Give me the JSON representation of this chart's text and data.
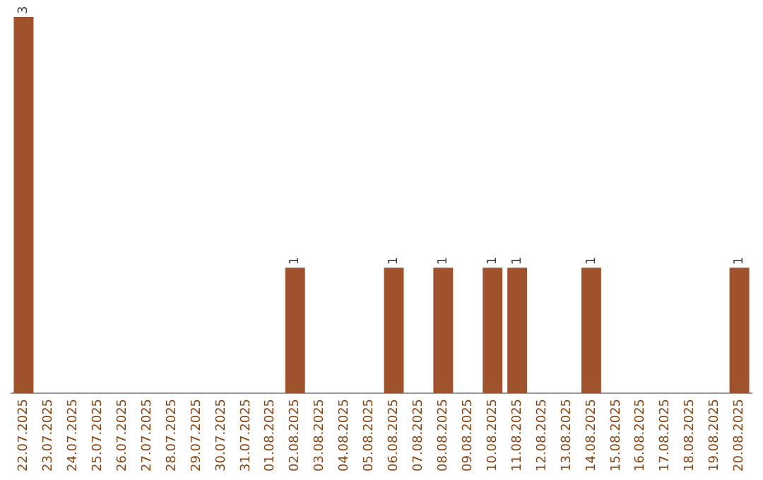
{
  "chart_data": {
    "type": "bar",
    "categories": [
      "22.07.2025",
      "23.07.2025",
      "24.07.2025",
      "25.07.2025",
      "26.07.2025",
      "27.07.2025",
      "28.07.2025",
      "29.07.2025",
      "30.07.2025",
      "31.07.2025",
      "01.08.2025",
      "02.08.2025",
      "03.08.2025",
      "04.08.2025",
      "05.08.2025",
      "06.08.2025",
      "07.08.2025",
      "08.08.2025",
      "09.08.2025",
      "10.08.2025",
      "11.08.2025",
      "12.08.2025",
      "13.08.2025",
      "14.08.2025",
      "15.08.2025",
      "16.08.2025",
      "17.08.2025",
      "18.08.2025",
      "19.08.2025",
      "20.08.2025"
    ],
    "values": [
      3,
      0,
      0,
      0,
      0,
      0,
      0,
      0,
      0,
      0,
      0,
      1,
      0,
      0,
      0,
      1,
      0,
      1,
      0,
      1,
      1,
      0,
      0,
      1,
      0,
      0,
      0,
      0,
      0,
      1
    ],
    "value_labels": [
      "3",
      null,
      null,
      null,
      null,
      null,
      null,
      null,
      null,
      null,
      null,
      "1",
      null,
      null,
      null,
      "1",
      null,
      "1",
      null,
      "1",
      "1",
      null,
      null,
      "1",
      null,
      null,
      null,
      null,
      null,
      "1"
    ],
    "color": "#a0522d",
    "grid": false,
    "legend": false,
    "tick_labels": "x"
  }
}
